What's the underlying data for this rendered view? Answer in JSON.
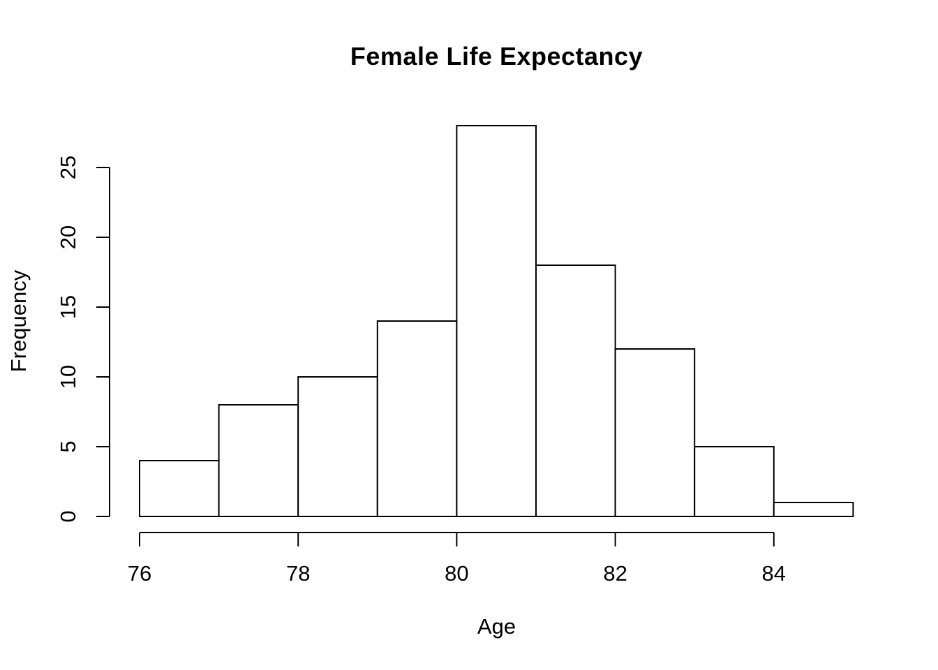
{
  "chart_data": {
    "type": "bar",
    "subtype": "histogram",
    "title": "Female Life Expectancy",
    "xlabel": "Age",
    "ylabel": "Frequency",
    "bin_edges": [
      76,
      77,
      78,
      79,
      80,
      81,
      82,
      83,
      84,
      85
    ],
    "bins": [
      "76-77",
      "77-78",
      "78-79",
      "79-80",
      "80-81",
      "81-82",
      "82-83",
      "83-84",
      "84-85"
    ],
    "counts": [
      4,
      8,
      10,
      14,
      28,
      18,
      12,
      5,
      1
    ],
    "x_ticks": [
      "76",
      "78",
      "80",
      "82",
      "84"
    ],
    "x_tick_values": [
      76,
      78,
      80,
      82,
      84
    ],
    "y_ticks": [
      "0",
      "5",
      "10",
      "15",
      "20",
      "25"
    ],
    "y_tick_values": [
      0,
      5,
      10,
      15,
      20,
      25
    ],
    "xlim": [
      76,
      85
    ],
    "ylim": [
      0,
      28
    ],
    "grid": "off",
    "legend": "none",
    "bar_fill": "#ffffff",
    "stroke_color": "#000000",
    "background_color": "#ffffff"
  }
}
